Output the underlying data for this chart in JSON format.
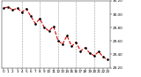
{
  "hours": [
    0,
    1,
    2,
    3,
    4,
    5,
    6,
    7,
    8,
    9,
    10,
    11,
    12,
    13,
    14,
    15,
    16,
    17,
    18,
    19,
    20,
    21,
    22,
    23
  ],
  "pressure": [
    30.09,
    30.11,
    30.06,
    30.09,
    30.03,
    30.08,
    29.97,
    29.86,
    29.93,
    29.8,
    29.75,
    29.82,
    29.61,
    29.55,
    29.68,
    29.52,
    29.58,
    29.45,
    29.5,
    29.42,
    29.38,
    29.44,
    29.36,
    29.32
  ],
  "line_color": "#dd0000",
  "marker_color": "#000000",
  "bg_color": "#ffffff",
  "grid_color": "#999999",
  "ylim": [
    29.2,
    30.2
  ],
  "ytick_vals": [
    29.2,
    29.4,
    29.6,
    29.8,
    30.0,
    30.2
  ],
  "ytick_labels": [
    "29.20",
    "29.40",
    "29.60",
    "29.80",
    "30.00",
    "30.20"
  ],
  "vgrid_positions": [
    4,
    8,
    12,
    16,
    20
  ],
  "marker_size": 1.8,
  "line_width": 0.8,
  "font_size": 3.0
}
